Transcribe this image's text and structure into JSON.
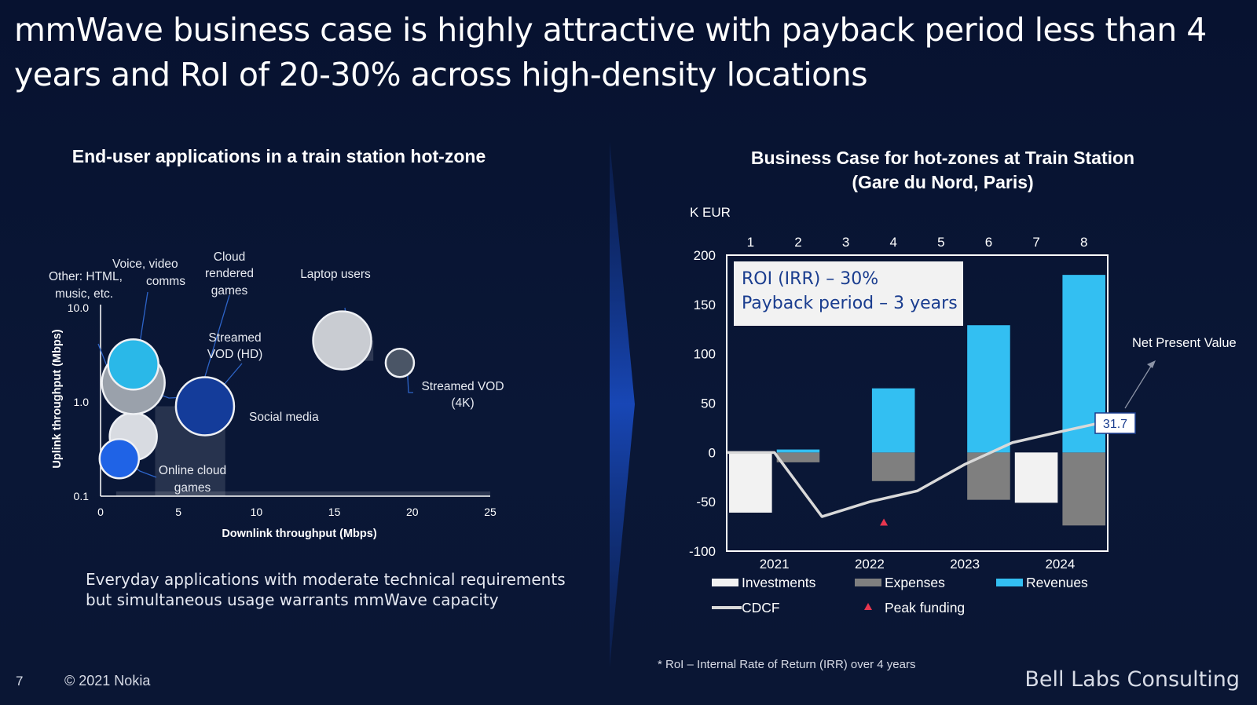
{
  "slide": {
    "title": "mmWave business case is highly attractive with payback period less than 4 years and RoI of 20-30% across high-density locations",
    "caption": "Everyday applications with moderate technical requirements but simultaneous usage warrants mmWave capacity",
    "footnote": "* RoI – Internal Rate of Return (IRR) over 4 years",
    "page_number": "7",
    "copyright": "© 2021 Nokia",
    "brand": "Bell Labs Consulting"
  },
  "colors": {
    "background": "#0a1633",
    "investments": "#f2f2f2",
    "expenses": "#7f7f7f",
    "revenues": "#33bff2",
    "cdcf": "#d9d9d9",
    "peak_funding": "#e8364f"
  },
  "chart_data": [
    {
      "type": "scatter",
      "title": "End-user applications in a train station hot-zone",
      "xlabel": "Downlink throughput (Mbps)",
      "ylabel": "Uplink throughput (Mbps)",
      "xlim": [
        0,
        25
      ],
      "ylim": [
        0.1,
        10
      ],
      "yscale": "log",
      "xticks": [
        "0",
        "5",
        "10",
        "15",
        "20",
        "25"
      ],
      "yticks": [
        "0.1",
        "1.0",
        "10.0"
      ],
      "grid": false,
      "points": [
        {
          "label": "Other: HTML, music, etc.",
          "x": 2.1,
          "y": 0.43,
          "size": 3,
          "color": "#d8dbe1"
        },
        {
          "label": "Voice, video comms",
          "x": 2.1,
          "y": 1.6,
          "size": 4,
          "color": "#9aa1ab"
        },
        {
          "label": "Voice, video comms",
          "x": 2.1,
          "y": 2.5,
          "size": 3.2,
          "color": "#2ab8e8"
        },
        {
          "label": "Online cloud games",
          "x": 1.2,
          "y": 0.25,
          "size": 2.5,
          "color": "#1f63e6"
        },
        {
          "label": "Cloud rendered games",
          "x": 6.0,
          "y": 1.2,
          "size": 1.4,
          "color": "#d8dbe1"
        },
        {
          "label": "Social media",
          "x": 6.7,
          "y": 0.9,
          "size": 3.7,
          "color": "#143c9a"
        },
        {
          "label": "Laptop users",
          "x": 15.5,
          "y": 4.5,
          "size": 3.7,
          "color": "#c9ccd2"
        },
        {
          "label": "Streamed VOD (4K)",
          "x": 19.2,
          "y": 2.6,
          "size": 1.8,
          "color": "#4a5566"
        }
      ],
      "annotations": [
        {
          "text": "Other: HTML, music, etc."
        },
        {
          "text": "Voice, video comms"
        },
        {
          "text": "Cloud rendered games"
        },
        {
          "text": "Laptop users"
        },
        {
          "text": "Streamed VOD (HD)"
        },
        {
          "text": "Streamed VOD (4K)"
        },
        {
          "text": "Social media"
        },
        {
          "text": "Online cloud games"
        }
      ]
    },
    {
      "type": "bar",
      "title": "Business Case for hot-zones at Train Station (Gare du Nord, Paris)",
      "ylabel": "K EUR",
      "ylim": [
        -100,
        200
      ],
      "yticks": [
        "200",
        "150",
        "100",
        "50",
        "0",
        "-50",
        "-100"
      ],
      "quarters": [
        "1",
        "2",
        "3",
        "4",
        "5",
        "6",
        "7",
        "8"
      ],
      "year_labels": [
        "2021",
        "2022",
        "2023",
        "2024"
      ],
      "series": [
        {
          "name": "Investments",
          "values": [
            -61,
            0,
            0,
            0,
            0,
            0,
            -51,
            0
          ]
        },
        {
          "name": "Expenses",
          "values": [
            0,
            -10,
            0,
            -29,
            0,
            -48,
            0,
            -74
          ]
        },
        {
          "name": "Revenues",
          "values": [
            0,
            3,
            0,
            65,
            0,
            129,
            0,
            180
          ]
        }
      ],
      "cdcf": {
        "name": "CDCF",
        "values": [
          0,
          0,
          -65,
          -50,
          -39,
          -12,
          10,
          21,
          31.7
        ]
      },
      "peak_funding": {
        "name": "Peak funding",
        "value": -71
      },
      "npv": {
        "label": "Net Present Value",
        "value": "31.7"
      },
      "roi_box": {
        "roi": "ROI (IRR) – 30%",
        "payback": "Payback period – 3 years"
      },
      "legend": [
        "Investments",
        "Expenses",
        "Revenues",
        "CDCF",
        "Peak funding"
      ],
      "legend_position": "bottom"
    }
  ]
}
